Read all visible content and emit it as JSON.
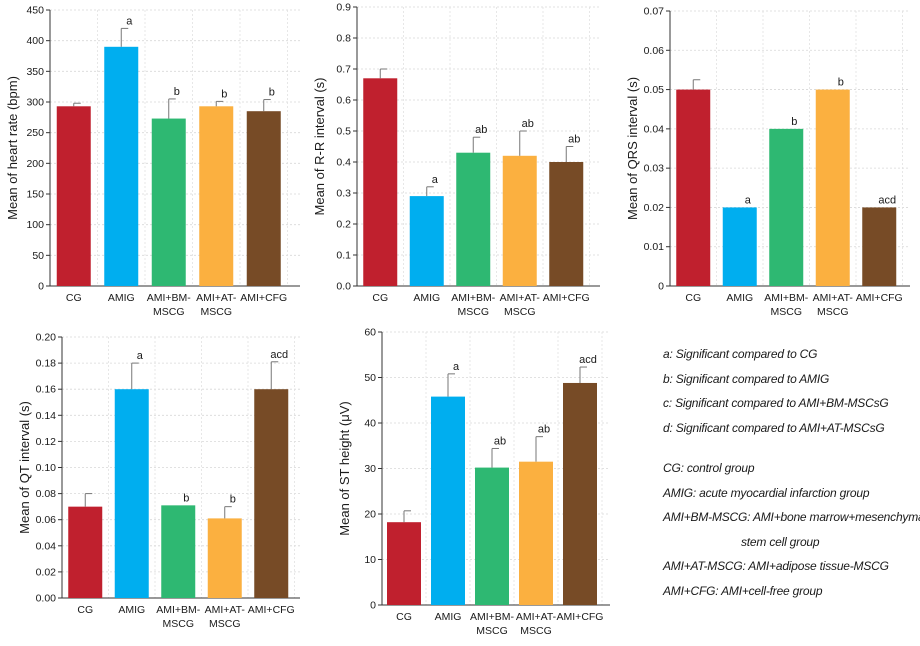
{
  "colors": [
    "#C0202E",
    "#00AEEF",
    "#2EB872",
    "#FBB040",
    "#774B26"
  ],
  "chart_data": [
    {
      "type": "bar",
      "categories": [
        [
          "CG"
        ],
        [
          "AMIG"
        ],
        [
          "AMI+BM-",
          "MSCG"
        ],
        [
          "AMI+AT-",
          "MSCG"
        ],
        [
          "AMI+CFG"
        ]
      ],
      "values": [
        293,
        390,
        273,
        293,
        285
      ],
      "errors": [
        5,
        30,
        32,
        8,
        19
      ],
      "annotations": [
        "",
        "a",
        "b",
        "b",
        "b"
      ],
      "ylabel": "Mean of heart rate (bpm)",
      "ylim": [
        0,
        450
      ],
      "yticks": [
        "0",
        "50",
        "100",
        "150",
        "200",
        "250",
        "300",
        "350",
        "400",
        "450"
      ],
      "grid": true
    },
    {
      "type": "bar",
      "categories": [
        [
          "CG"
        ],
        [
          "AMIG"
        ],
        [
          "AMI+BM-",
          "MSCG"
        ],
        [
          "AMI+AT-",
          "MSCG"
        ],
        [
          "AMI+CFG"
        ]
      ],
      "values": [
        0.67,
        0.29,
        0.43,
        0.42,
        0.4
      ],
      "errors": [
        0.03,
        0.03,
        0.05,
        0.08,
        0.05
      ],
      "annotations": [
        "",
        "a",
        "ab",
        "ab",
        "ab"
      ],
      "ylabel": "Mean of R-R interval (s)",
      "ylim": [
        0,
        0.9
      ],
      "yticks": [
        "0.0",
        "0.1",
        "0.2",
        "0.3",
        "0.4",
        "0.5",
        "0.6",
        "0.7",
        "0.8",
        "0.9"
      ],
      "grid": true
    },
    {
      "type": "bar",
      "categories": [
        [
          "CG"
        ],
        [
          "AMIG"
        ],
        [
          "AMI+BM-",
          "MSCG"
        ],
        [
          "AMI+AT-",
          "MSCG"
        ],
        [
          "AMI+CFG"
        ]
      ],
      "values": [
        0.05,
        0.02,
        0.04,
        0.05,
        0.02
      ],
      "errors": [
        0.0025,
        0,
        0,
        0,
        0
      ],
      "annotations": [
        "",
        "a",
        "b",
        "b",
        "acd"
      ],
      "ylabel": "Mean of QRS interval (s)",
      "ylim": [
        0,
        0.07
      ],
      "yticks": [
        "0",
        "0.01",
        "0.02",
        "0.03",
        "0.04",
        "0.05",
        "0.06",
        "0.07"
      ],
      "grid": true
    },
    {
      "type": "bar",
      "categories": [
        [
          "CG"
        ],
        [
          "AMIG"
        ],
        [
          "AMI+BM-",
          "MSCG"
        ],
        [
          "AMI+AT-",
          "MSCG"
        ],
        [
          "AMI+CFG"
        ]
      ],
      "values": [
        0.07,
        0.16,
        0.071,
        0.061,
        0.16
      ],
      "errors": [
        0.01,
        0.02,
        0,
        0.009,
        0.021
      ],
      "annotations": [
        "",
        "a",
        "b",
        "b",
        "acd"
      ],
      "ylabel": "Mean of QT interval (s)",
      "ylim": [
        0,
        0.2
      ],
      "yticks": [
        "0.00",
        "0.02",
        "0.04",
        "0.06",
        "0.08",
        "0.10",
        "0.12",
        "0.14",
        "0.16",
        "0.18",
        "0.20"
      ],
      "grid": true
    },
    {
      "type": "bar",
      "categories": [
        [
          "CG"
        ],
        [
          "AMIG"
        ],
        [
          "AMI+BM-",
          "MSCG"
        ],
        [
          "AMI+AT-",
          "MSCG"
        ],
        [
          "AMI+CFG"
        ]
      ],
      "values": [
        18.2,
        45.8,
        30.2,
        31.5,
        48.8
      ],
      "errors": [
        2.5,
        5,
        4.2,
        5.5,
        3.5
      ],
      "annotations": [
        "",
        "a",
        "ab",
        "ab",
        "acd"
      ],
      "ylabel": "Mean of ST height (μV)",
      "ylim": [
        0,
        60
      ],
      "yticks": [
        "0",
        "10",
        "20",
        "30",
        "40",
        "50",
        "60"
      ],
      "grid": true
    }
  ],
  "legend": {
    "significance": [
      "a: Significant compared to CG",
      "b: Significant compared to AMIG",
      "c: Significant compared to AMI+BM-MSCsG",
      "d: Significant compared to AMI+AT-MSCsG"
    ],
    "groups": [
      "CG: control group",
      "AMIG: acute myocardial infarction group",
      "AMI+BM-MSCG: AMI+bone marrow+mesenchymal",
      "stem cell group",
      "AMI+AT-MSCG: AMI+adipose tissue-MSCG",
      "AMI+CFG: AMI+cell-free group"
    ]
  }
}
